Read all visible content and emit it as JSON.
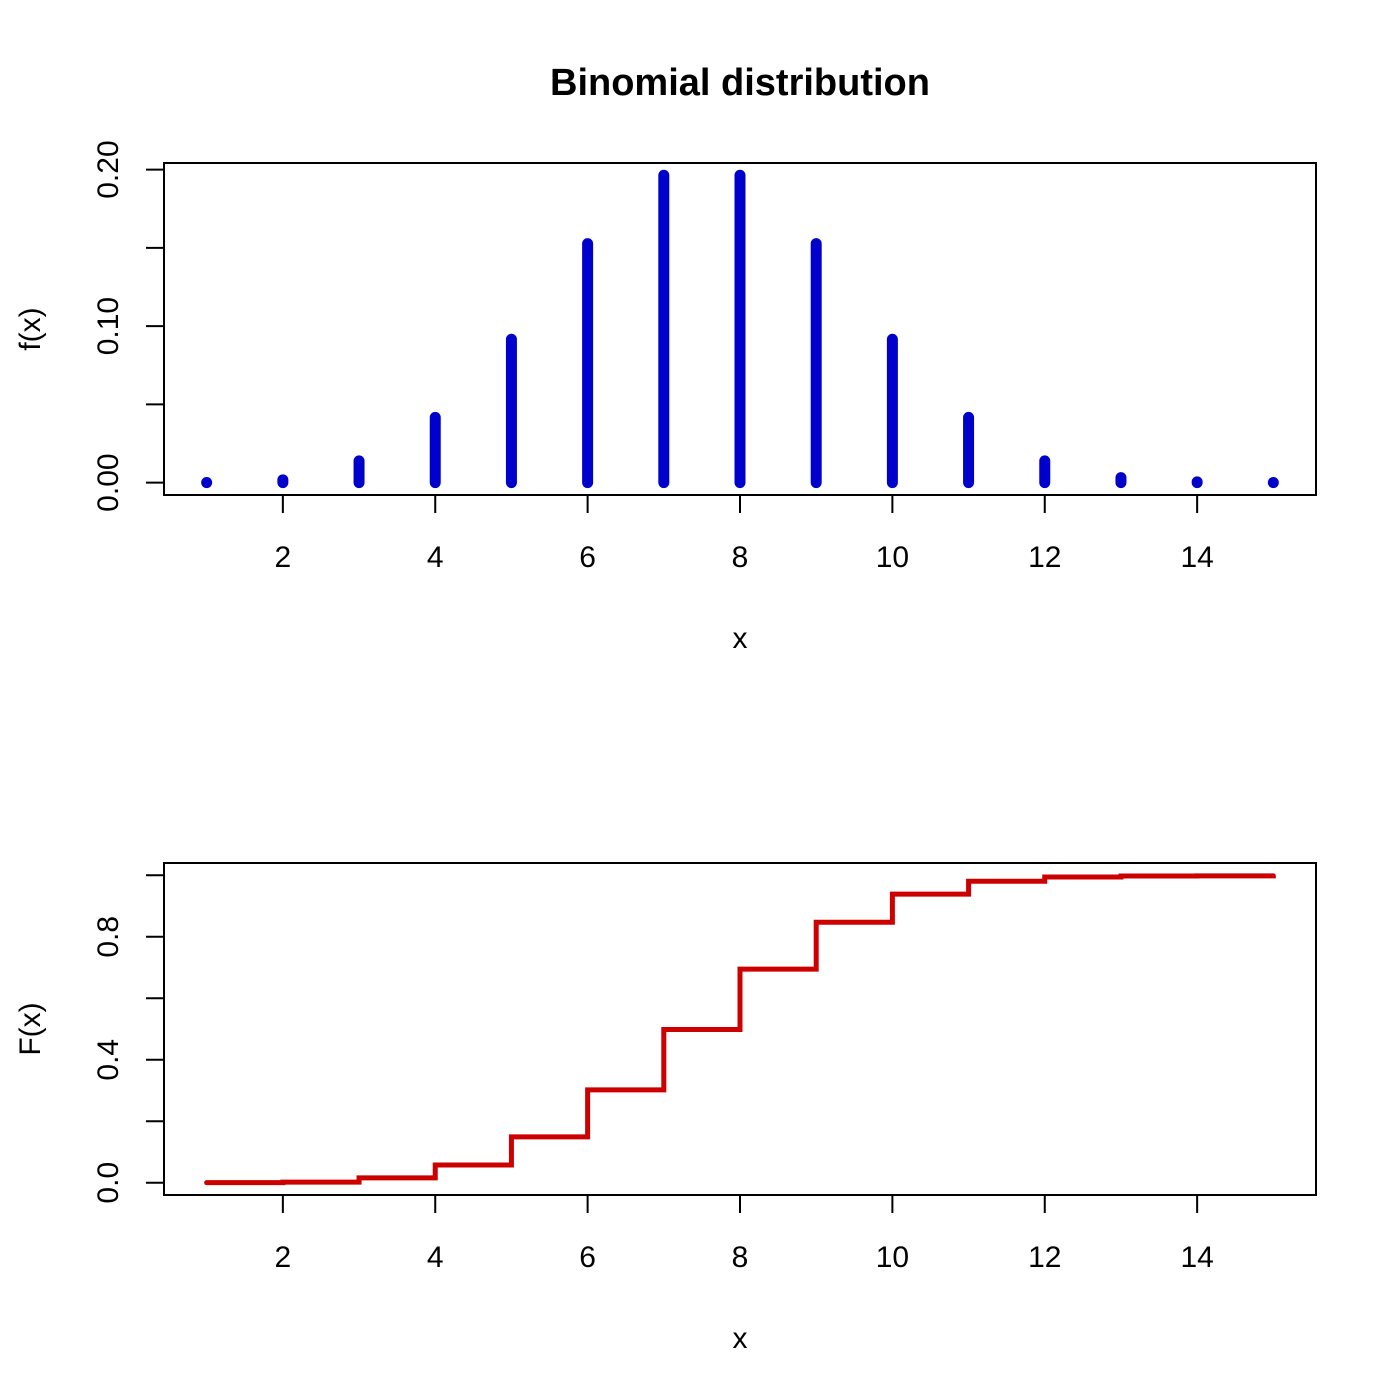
{
  "figure_title": "Binomial distribution",
  "colors": {
    "pmf": "#0000CD",
    "cdf": "#CD0000"
  },
  "chart_data": [
    {
      "type": "bar",
      "style": "vertical-spikes",
      "title": "Binomial distribution",
      "xlabel": "x",
      "ylabel": "f(x)",
      "x": [
        1,
        2,
        3,
        4,
        5,
        6,
        7,
        8,
        9,
        10,
        11,
        12,
        13,
        14,
        15
      ],
      "values": [
        0.0001,
        0.0018,
        0.0139,
        0.0417,
        0.0916,
        0.1527,
        0.1964,
        0.1964,
        0.1527,
        0.0916,
        0.0417,
        0.0139,
        0.0032,
        0.0005,
        0.0001
      ],
      "xlim": [
        0.44,
        15.56
      ],
      "ylim": [
        -0.0079,
        0.2042
      ],
      "xticks": [
        2,
        4,
        6,
        8,
        10,
        12,
        14
      ],
      "xtick_labels": [
        "2",
        "4",
        "6",
        "8",
        "10",
        "12",
        "14"
      ],
      "yticks": [
        0,
        0.05,
        0.1,
        0.15,
        0.2
      ],
      "ytick_labels": [
        "0.00",
        "",
        "0.10",
        "",
        "0.20"
      ],
      "color": "#0000CD",
      "grid": false
    },
    {
      "type": "line",
      "style": "step",
      "title": "",
      "xlabel": "x",
      "ylabel": "F(x)",
      "x": [
        1,
        2,
        3,
        4,
        5,
        6,
        7,
        8,
        9,
        10,
        11,
        12,
        13,
        14,
        15
      ],
      "values": [
        0.0001,
        0.0019,
        0.0158,
        0.0575,
        0.1491,
        0.3018,
        0.4982,
        0.6946,
        0.8473,
        0.9389,
        0.9806,
        0.9945,
        0.9977,
        0.9982,
        0.9983
      ],
      "xlim": [
        0.44,
        15.56
      ],
      "ylim": [
        -0.04,
        1.04
      ],
      "xticks": [
        2,
        4,
        6,
        8,
        10,
        12,
        14
      ],
      "xtick_labels": [
        "2",
        "4",
        "6",
        "8",
        "10",
        "12",
        "14"
      ],
      "yticks": [
        0,
        0.2,
        0.4,
        0.6,
        0.8,
        1.0
      ],
      "ytick_labels": [
        "0.0",
        "",
        "0.4",
        "",
        "0.8",
        ""
      ],
      "color": "#CD0000",
      "grid": false
    }
  ]
}
